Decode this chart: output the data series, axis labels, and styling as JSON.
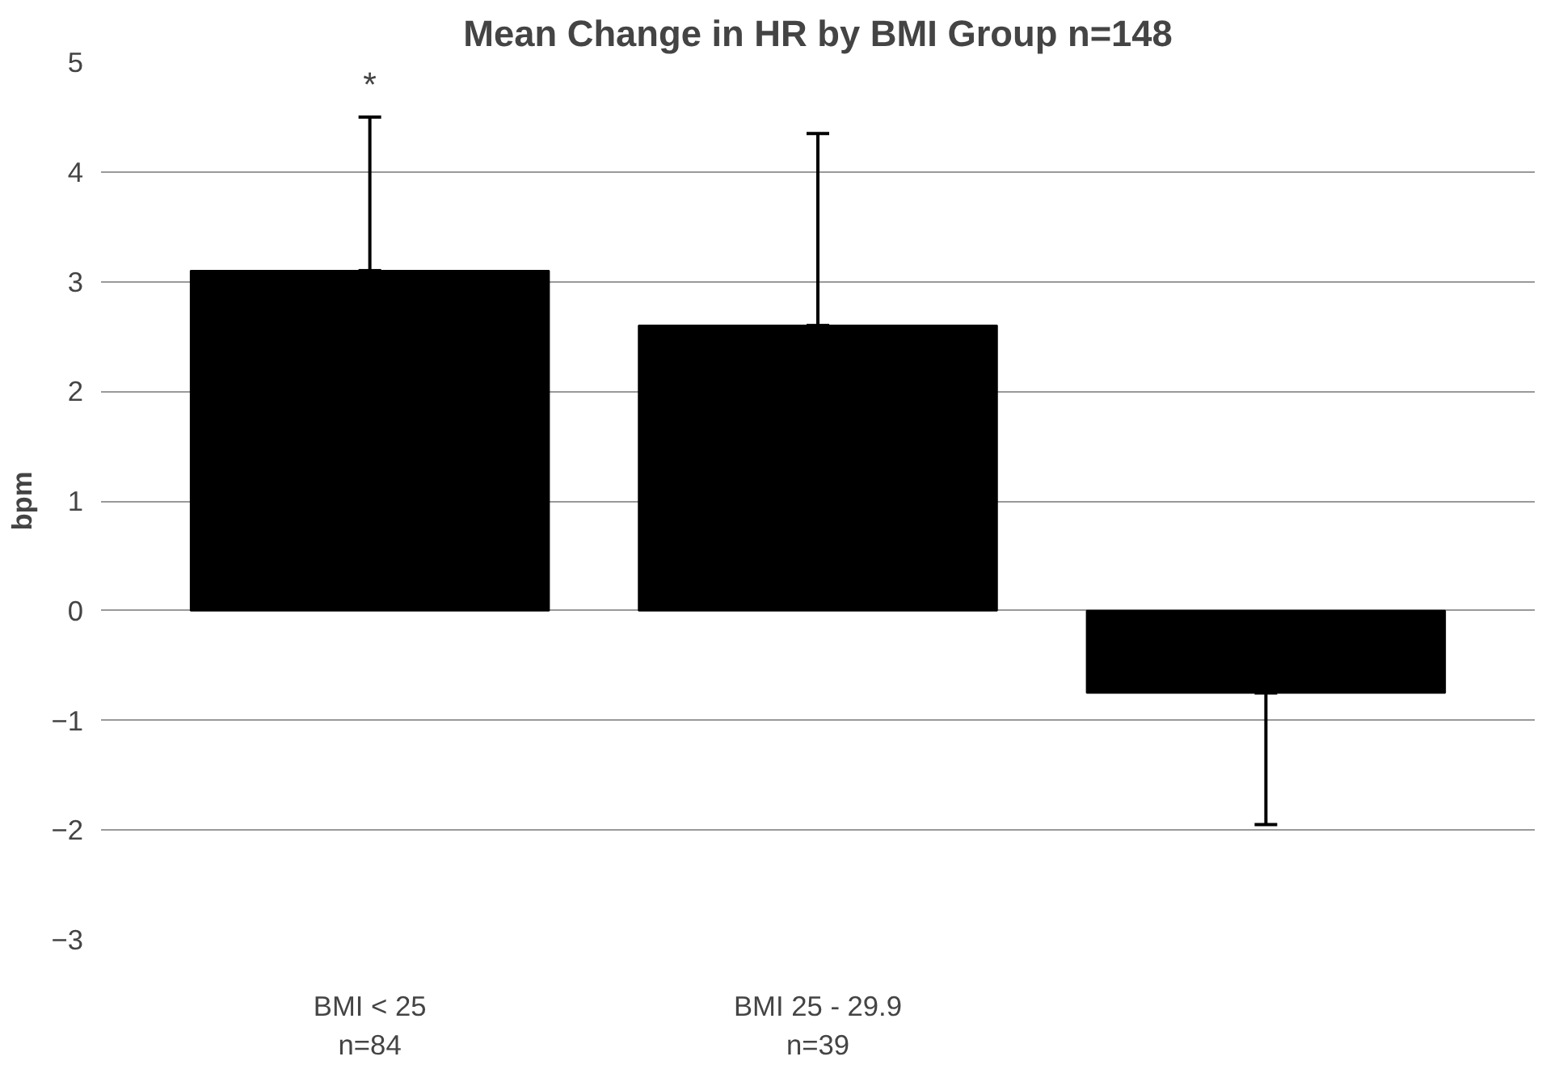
{
  "chart_data": {
    "type": "bar",
    "title": "Mean Change in HR by BMI Group n=148",
    "ylabel": "bpm",
    "categories": [
      "BMI < 25\nn=84",
      "BMI 25 - 29.9\nn=39",
      null
    ],
    "values": [
      3.1,
      2.6,
      -0.75
    ],
    "color": "#000000",
    "errors": [
      [
        3.1,
        4.5
      ],
      [
        2.6,
        4.35
      ],
      [
        -1.95,
        -0.75
      ]
    ],
    "ylim": [
      -3,
      5
    ],
    "yticks": [
      -3,
      -2,
      -1,
      0,
      1,
      2,
      3,
      4,
      5
    ],
    "grid": "y",
    "annotations": [
      {
        "text": "*",
        "x": "BMI < 25\nn=84",
        "y": 4.5
      }
    ]
  }
}
